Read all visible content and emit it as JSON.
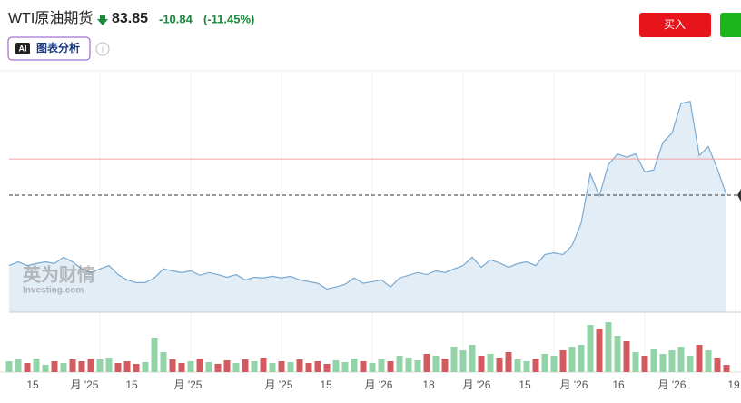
{
  "header": {
    "title": "WTI原油期货",
    "price": 83.85,
    "change": "-10.84",
    "change_pct": "(-11.45%)",
    "ai_badge": "AI",
    "ai_button": "图表分析",
    "buy_button": "买入"
  },
  "watermark": {
    "brand": "英为财情",
    "site": "Investing.com"
  },
  "chart_data": {
    "type": "area",
    "values": [
      62.8,
      63.9,
      62.8,
      63.4,
      63.9,
      63.4,
      65.3,
      63.9,
      61.8,
      60.7,
      61.8,
      62.8,
      60.1,
      58.5,
      57.7,
      57.7,
      59.1,
      61.8,
      61.2,
      60.7,
      61.2,
      59.9,
      60.7,
      60.1,
      59.3,
      60.1,
      58.5,
      59.3,
      59.1,
      59.6,
      59.1,
      59.6,
      58.5,
      58.0,
      57.5,
      55.8,
      56.4,
      57.2,
      59.1,
      57.5,
      58.0,
      58.5,
      56.4,
      59.1,
      59.9,
      60.7,
      60.1,
      61.2,
      60.7,
      61.8,
      62.8,
      65.3,
      62.3,
      64.5,
      63.6,
      62.3,
      63.4,
      63.9,
      62.8,
      66.1,
      66.6,
      66.1,
      68.8,
      75.5,
      90.3,
      83.6,
      93.0,
      96.2,
      95.2,
      96.2,
      90.8,
      91.4,
      99.7,
      102.4,
      111.3,
      111.9,
      95.7,
      98.4,
      91.7,
      83.85
    ],
    "color": "#7aaad2",
    "fill": "#e3edf5",
    "ylim": [
      48.85,
      120.5
    ],
    "prev_close": 94.69,
    "prev_close_color": "#f0a0a4",
    "volume": [
      12,
      14,
      10,
      15,
      8,
      12,
      10,
      14,
      12,
      15,
      14,
      16,
      10,
      12,
      9,
      11,
      38,
      22,
      14,
      10,
      12,
      15,
      11,
      9,
      13,
      10,
      14,
      12,
      16,
      10,
      12,
      11,
      14,
      10,
      12,
      9,
      13,
      11,
      15,
      12,
      10,
      14,
      12,
      18,
      16,
      13,
      20,
      18,
      15,
      28,
      24,
      30,
      18,
      20,
      16,
      22,
      14,
      12,
      15,
      20,
      18,
      24,
      28,
      30,
      52,
      48,
      55,
      40,
      34,
      22,
      18,
      26,
      20,
      24,
      28,
      18,
      30,
      24,
      16,
      8
    ],
    "volume_ylim": [
      0,
      60
    ],
    "up_color": "#93d3a8",
    "down_color": "#d25b60",
    "xticks": [
      {
        "value": 2.6,
        "label": "15"
      },
      {
        "value": 8.3,
        "label": "月 '25"
      },
      {
        "value": 13.5,
        "label": "15"
      },
      {
        "value": 19.7,
        "label": "月 '25"
      },
      {
        "value": 29.7,
        "label": "月 '25"
      },
      {
        "value": 34.9,
        "label": "15"
      },
      {
        "value": 40.7,
        "label": "月 '26"
      },
      {
        "value": 46.2,
        "label": "18"
      },
      {
        "value": 51.5,
        "label": "月 '26"
      },
      {
        "value": 56.8,
        "label": "15"
      },
      {
        "value": 62.2,
        "label": "月 '26"
      },
      {
        "value": 67.1,
        "label": "16"
      },
      {
        "value": 73,
        "label": "月 '26"
      },
      {
        "value": 79.8,
        "label": "19"
      }
    ]
  }
}
